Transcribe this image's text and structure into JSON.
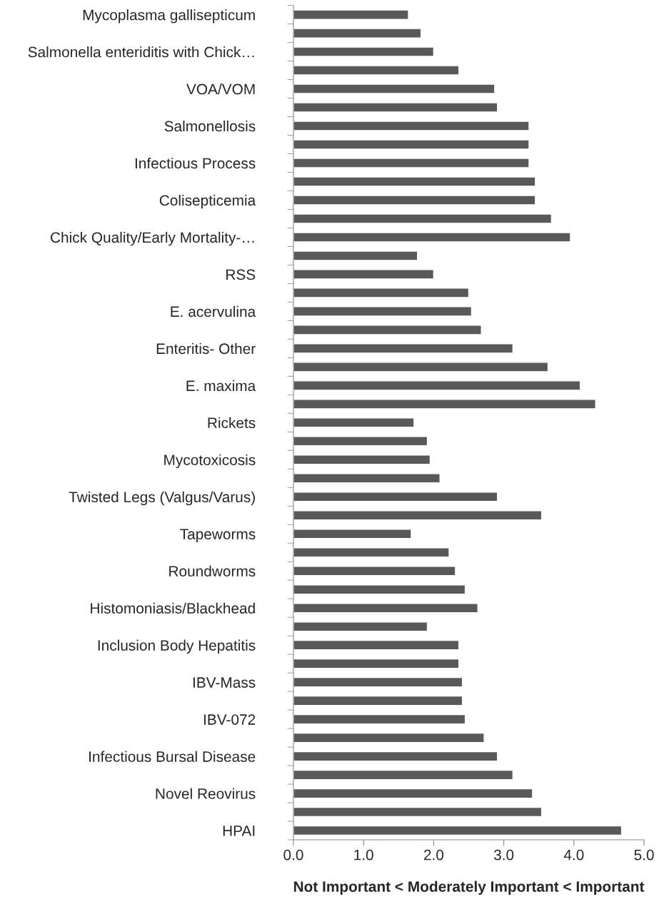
{
  "chart_data": {
    "type": "bar",
    "orientation": "horizontal",
    "xlabel": "Not Important < Moderately Important < Important",
    "categories": [
      "Mycoplasma gallisepticum",
      null,
      "Salmonella enteriditis with Chick…",
      null,
      "VOA/VOM",
      null,
      "Salmonellosis",
      null,
      "Infectious Process",
      null,
      "Colisepticemia",
      null,
      "Chick Quality/Early Mortality-…",
      null,
      "RSS",
      null,
      "E. acervulina",
      null,
      "Enteritis- Other",
      null,
      "E. maxima",
      null,
      "Rickets",
      null,
      "Mycotoxicosis",
      null,
      "Twisted Legs (Valgus/Varus)",
      null,
      "Tapeworms",
      null,
      "Roundworms",
      null,
      "Histomoniasis/Blackhead",
      null,
      "Inclusion Body Hepatitis",
      null,
      "IBV-Mass",
      null,
      "IBV-072",
      null,
      "Infectious Bursal Disease",
      null,
      "Novel Reovirus",
      null,
      "HPAI"
    ],
    "values": [
      1.64,
      1.82,
      2.0,
      2.36,
      2.87,
      2.91,
      3.36,
      3.36,
      3.36,
      3.45,
      3.45,
      3.68,
      3.95,
      1.77,
      2.0,
      2.5,
      2.54,
      2.68,
      3.13,
      3.63,
      4.09,
      4.31,
      1.72,
      1.91,
      1.95,
      2.09,
      2.91,
      3.54,
      1.68,
      2.22,
      2.31,
      2.45,
      2.63,
      1.91,
      2.36,
      2.36,
      2.41,
      2.41,
      2.45,
      2.72,
      2.91,
      3.13,
      3.41,
      3.54,
      4.68
    ],
    "color": "#595959",
    "xlim": [
      0,
      5
    ],
    "xticks": [
      {
        "value": 0,
        "label": "0.0"
      },
      {
        "value": 1,
        "label": "1.0"
      },
      {
        "value": 2,
        "label": "2.0"
      },
      {
        "value": 3,
        "label": "3.0"
      },
      {
        "value": 4,
        "label": "4.0"
      },
      {
        "value": 5,
        "label": "5.0"
      }
    ],
    "grid": false,
    "legend": false
  }
}
